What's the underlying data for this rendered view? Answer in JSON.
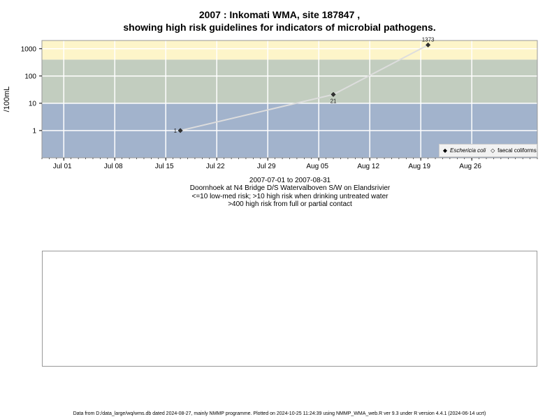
{
  "title_line1": "2007 : Inkomati WMA, site 187847 ,",
  "title_line2": "showing high risk guidelines for indicators of microbial pathogens.",
  "captions": [
    "2007-07-01 to 2007-08-31",
    "Doornhoek at N4 Bridge D/S Watervalboven S/W on Elandsrivier",
    "<=10 low-med risk; >10 high risk when drinking untreated water",
    ">400 high risk from full or partial contact"
  ],
  "footer": "Data from D:/data_large/wq/wms.db dated 2024-08-27, mainly NMMP programme. Plotted on 2024-10-25 11:24:39 using NMMP_WMA_web.R ver 9.3 under R version 4.4.1 (2024-06-14 ucrt)",
  "chart_data": {
    "type": "line",
    "title": "2007 : Inkomati WMA, site 187847 , showing high risk guidelines for indicators of microbial pathogens.",
    "ylabel": "/100mL",
    "xlabel": "",
    "y_scale": "log",
    "ylim": [
      0.1,
      2000
    ],
    "y_ticks": [
      {
        "value": 1,
        "label": "1"
      },
      {
        "value": 10,
        "label": "10"
      },
      {
        "value": 100,
        "label": "100"
      },
      {
        "value": 1000,
        "label": "1000"
      }
    ],
    "xlim": [
      "2007-06-28",
      "2007-09-04"
    ],
    "x_ticks": [
      {
        "date": "2007-07-01",
        "label": "Jul 01"
      },
      {
        "date": "2007-07-08",
        "label": "Jul 08"
      },
      {
        "date": "2007-07-15",
        "label": "Jul 15"
      },
      {
        "date": "2007-07-22",
        "label": "Jul 22"
      },
      {
        "date": "2007-07-29",
        "label": "Jul 29"
      },
      {
        "date": "2007-08-05",
        "label": "Aug 05"
      },
      {
        "date": "2007-08-12",
        "label": "Aug 12"
      },
      {
        "date": "2007-08-19",
        "label": "Aug 19"
      },
      {
        "date": "2007-08-26",
        "label": "Aug 26"
      }
    ],
    "bands": [
      {
        "from": 0.1,
        "to": 10,
        "color": "#a2b3cc"
      },
      {
        "from": 10,
        "to": 400,
        "color": "#c2cdbf"
      },
      {
        "from": 400,
        "to": 2000,
        "color": "#fdf5c9"
      }
    ],
    "grid": true,
    "legend_position": "bottom-right",
    "series": [
      {
        "name": "Eschericia coli",
        "color": "#333333",
        "line_color": "#dddddd",
        "marker": "diamond-filled",
        "points": [
          {
            "date": "2007-07-17",
            "value": 1,
            "label": "1"
          },
          {
            "date": "2007-08-07",
            "value": 21,
            "label": "21"
          },
          {
            "date": "2007-08-20",
            "value": 1373,
            "label": "1373"
          }
        ]
      },
      {
        "name": "faecal coliforms",
        "color": "#555555",
        "marker": "diamond-open",
        "points": []
      }
    ]
  }
}
